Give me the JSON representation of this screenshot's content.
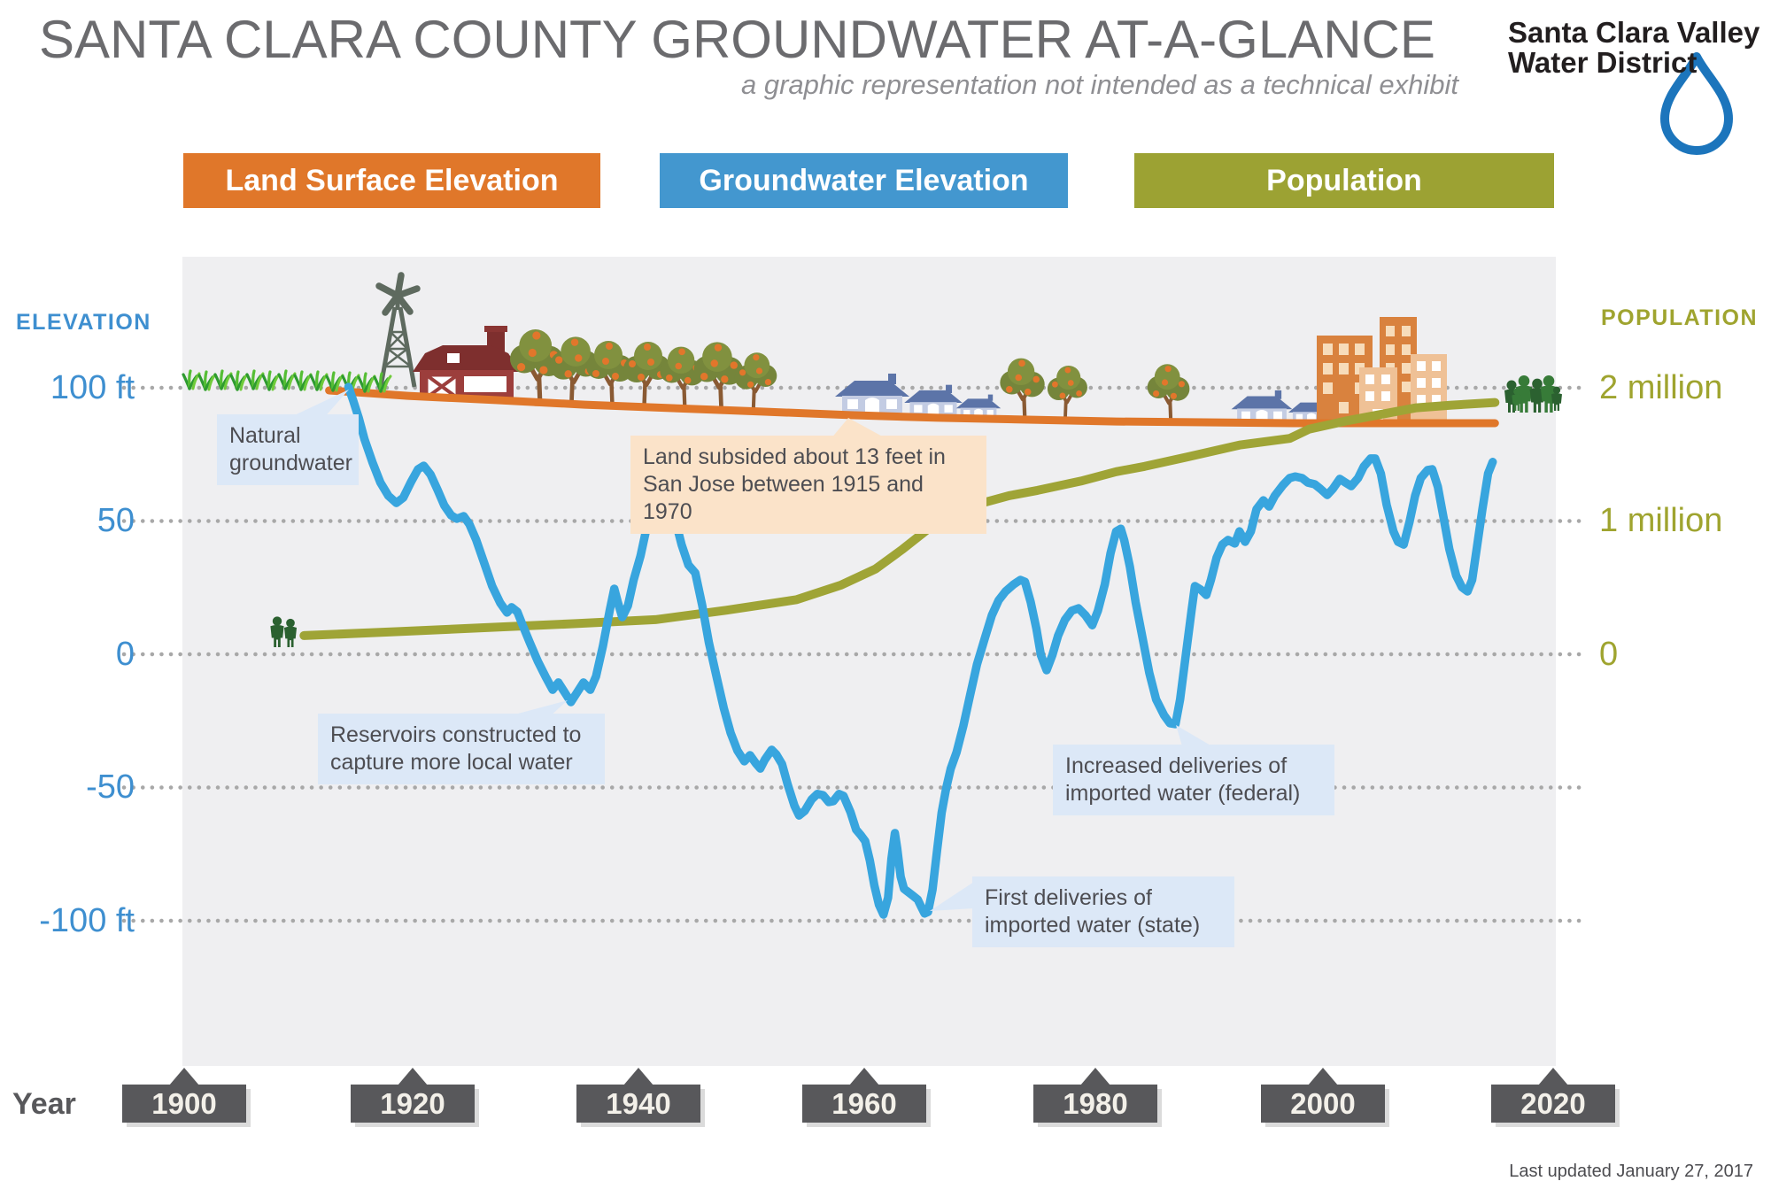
{
  "title": "SANTA CLARA COUNTY GROUNDWATER AT-A-GLANCE",
  "subtitle": "a graphic representation not intended as a technical exhibit",
  "logo": {
    "line1": "Santa Clara Valley",
    "line2": "Water District"
  },
  "legend": [
    {
      "label": "Land Surface Elevation",
      "color": "#E0772A"
    },
    {
      "label": "Groundwater Elevation",
      "color": "#4397CF"
    },
    {
      "label": "Population",
      "color": "#9CA233"
    }
  ],
  "left_axis": {
    "title": "ELEVATION",
    "ticks": [
      "100 ft",
      "50",
      "0",
      "-50",
      "-100 ft"
    ]
  },
  "right_axis": {
    "title": "POPULATION",
    "ticks": [
      "2 million",
      "1 million",
      "0"
    ]
  },
  "x_axis": {
    "title": "Year",
    "years": [
      "1900",
      "1920",
      "1940",
      "1960",
      "1980",
      "2000",
      "2020"
    ]
  },
  "annotations": {
    "natural": {
      "line1": "Natural",
      "line2": "groundwater"
    },
    "subsided": {
      "line1": "Land subsided about 13 feet in",
      "line2": "San Jose between 1915 and 1970"
    },
    "reservoirs": {
      "line1": "Reservoirs constructed to",
      "line2": "capture more local water"
    },
    "federal": {
      "line1": "Increased deliveries of",
      "line2": "imported water (federal)"
    },
    "state": {
      "line1": "First deliveries of",
      "line2": "imported water (state)"
    }
  },
  "footer": {
    "last_updated": "Last updated January 27, 2017"
  },
  "colors": {
    "land_surface": "#E0772A",
    "groundwater": "#38A5DE",
    "population": "#9FA436",
    "plot_background": "#EFEFF1",
    "gridline": "#A8A8A8",
    "note_blue": "#DCE8F7",
    "note_peach": "#FBE3C9",
    "year_box": "#58585B",
    "logo_drop": "#1C75BC"
  },
  "chart_data": {
    "type": "line",
    "title": "Santa Clara County Groundwater At-A-Glance",
    "x_range": [
      1900,
      2020
    ],
    "elevation_axis": {
      "unit": "ft",
      "ticks": [
        100,
        50,
        0,
        -50,
        -100
      ]
    },
    "population_axis": {
      "unit": "million",
      "ticks": [
        2,
        1,
        0
      ]
    },
    "grid": "dotted horizontal",
    "legend_position": "top",
    "series": {
      "land_surface_elevation_ft": {
        "points": [
          [
            1912.7,
            99.0
          ],
          [
            1919.6,
            97.0
          ],
          [
            1927.3,
            95.4
          ],
          [
            1935.1,
            93.7
          ],
          [
            1942.8,
            92.4
          ],
          [
            1950.6,
            91.1
          ],
          [
            1958.4,
            89.8
          ],
          [
            1966.1,
            88.8
          ],
          [
            1973.9,
            88.1
          ],
          [
            1981.7,
            87.4
          ],
          [
            1989.4,
            87.1
          ],
          [
            1997.2,
            86.8
          ],
          [
            2004.9,
            86.8
          ],
          [
            2014.9,
            86.8
          ]
        ]
      },
      "population_millions": {
        "points": [
          [
            1910.5,
            0.14
          ],
          [
            1918.8,
            0.17
          ],
          [
            1926.5,
            0.2
          ],
          [
            1934.3,
            0.23
          ],
          [
            1941.3,
            0.26
          ],
          [
            1947.5,
            0.33
          ],
          [
            1950.6,
            0.37
          ],
          [
            1953.7,
            0.41
          ],
          [
            1957.6,
            0.52
          ],
          [
            1960.6,
            0.64
          ],
          [
            1963.0,
            0.79
          ],
          [
            1966.1,
            1.0
          ],
          [
            1969.3,
            1.12
          ],
          [
            1972.3,
            1.19
          ],
          [
            1974.8,
            1.23
          ],
          [
            1978.6,
            1.3
          ],
          [
            1981.7,
            1.37
          ],
          [
            1984.2,
            1.41
          ],
          [
            1987.9,
            1.48
          ],
          [
            1992.5,
            1.57
          ],
          [
            1996.9,
            1.62
          ],
          [
            1998.6,
            1.69
          ],
          [
            2001.8,
            1.75
          ],
          [
            2004.9,
            1.8
          ],
          [
            2008.0,
            1.85
          ],
          [
            2011.1,
            1.87
          ],
          [
            2014.9,
            1.89
          ]
        ]
      },
      "groundwater_elevation_ft": {
        "points": [
          [
            1914.4,
            100.3
          ],
          [
            1914.8,
            95.4
          ],
          [
            1915.3,
            88.8
          ],
          [
            1915.8,
            80.8
          ],
          [
            1916.5,
            72.2
          ],
          [
            1917.2,
            64.6
          ],
          [
            1917.9,
            59.7
          ],
          [
            1918.6,
            57.0
          ],
          [
            1919.2,
            59.0
          ],
          [
            1919.9,
            65.0
          ],
          [
            1920.5,
            69.6
          ],
          [
            1921.0,
            70.9
          ],
          [
            1921.6,
            67.6
          ],
          [
            1922.2,
            62.0
          ],
          [
            1922.8,
            56.1
          ],
          [
            1923.4,
            52.4
          ],
          [
            1923.9,
            51.1
          ],
          [
            1924.5,
            52.1
          ],
          [
            1925.0,
            49.1
          ],
          [
            1925.6,
            43.2
          ],
          [
            1926.3,
            34.6
          ],
          [
            1927.0,
            26.0
          ],
          [
            1927.7,
            19.7
          ],
          [
            1928.3,
            16.1
          ],
          [
            1928.7,
            18.1
          ],
          [
            1929.2,
            16.4
          ],
          [
            1929.7,
            11.1
          ],
          [
            1930.3,
            4.8
          ],
          [
            1931.0,
            -2.1
          ],
          [
            1931.7,
            -8.0
          ],
          [
            1932.3,
            -12.7
          ],
          [
            1932.8,
            -10.0
          ],
          [
            1933.3,
            -13.3
          ],
          [
            1933.9,
            -17.3
          ],
          [
            1934.5,
            -13.3
          ],
          [
            1935.0,
            -10.0
          ],
          [
            1935.6,
            -12.7
          ],
          [
            1936.1,
            -7.7
          ],
          [
            1936.7,
            3.5
          ],
          [
            1937.3,
            16.8
          ],
          [
            1937.7,
            25.0
          ],
          [
            1938.0,
            20.1
          ],
          [
            1938.4,
            14.4
          ],
          [
            1938.9,
            18.7
          ],
          [
            1939.4,
            28.3
          ],
          [
            1940.0,
            37.2
          ],
          [
            1940.5,
            47.1
          ],
          [
            1941.1,
            54.0
          ],
          [
            1941.6,
            56.0
          ],
          [
            1942.0,
            53.7
          ],
          [
            1942.5,
            56.7
          ],
          [
            1943.0,
            51.4
          ],
          [
            1943.6,
            41.5
          ],
          [
            1944.2,
            33.9
          ],
          [
            1944.8,
            30.9
          ],
          [
            1945.4,
            19.0
          ],
          [
            1946.0,
            4.8
          ],
          [
            1946.7,
            -8.4
          ],
          [
            1947.3,
            -19.6
          ],
          [
            1947.9,
            -28.8
          ],
          [
            1948.5,
            -35.4
          ],
          [
            1949.1,
            -39.4
          ],
          [
            1949.6,
            -37.1
          ],
          [
            1950.1,
            -40.1
          ],
          [
            1950.5,
            -42.1
          ],
          [
            1950.9,
            -38.8
          ],
          [
            1951.5,
            -35.1
          ],
          [
            1951.9,
            -36.8
          ],
          [
            1952.4,
            -40.4
          ],
          [
            1952.9,
            -48.0
          ],
          [
            1953.5,
            -56.0
          ],
          [
            1953.9,
            -59.6
          ],
          [
            1954.4,
            -57.9
          ],
          [
            1955.0,
            -53.6
          ],
          [
            1955.5,
            -51.6
          ],
          [
            1956.0,
            -52.0
          ],
          [
            1956.5,
            -54.6
          ],
          [
            1956.9,
            -54.3
          ],
          [
            1957.4,
            -51.6
          ],
          [
            1957.8,
            -52.3
          ],
          [
            1958.4,
            -58.3
          ],
          [
            1958.9,
            -64.9
          ],
          [
            1959.3,
            -66.9
          ],
          [
            1959.7,
            -69.2
          ],
          [
            1960.1,
            -76.4
          ],
          [
            1960.5,
            -85.7
          ],
          [
            1960.9,
            -92.9
          ],
          [
            1961.3,
            -96.6
          ],
          [
            1961.7,
            -90.3
          ],
          [
            1962.0,
            -75.8
          ],
          [
            1962.3,
            -66.2
          ],
          [
            1962.5,
            -71.8
          ],
          [
            1962.8,
            -82.4
          ],
          [
            1963.1,
            -87.0
          ],
          [
            1963.5,
            -88.3
          ],
          [
            1963.9,
            -89.6
          ],
          [
            1964.3,
            -91.0
          ],
          [
            1964.6,
            -93.6
          ],
          [
            1964.9,
            -96.2
          ],
          [
            1965.2,
            -95.6
          ],
          [
            1965.6,
            -87.3
          ],
          [
            1966.0,
            -72.5
          ],
          [
            1966.4,
            -58.6
          ],
          [
            1966.8,
            -49.3
          ],
          [
            1967.2,
            -42.1
          ],
          [
            1967.7,
            -36.1
          ],
          [
            1968.3,
            -26.2
          ],
          [
            1968.9,
            -14.6
          ],
          [
            1969.5,
            -3.1
          ],
          [
            1970.2,
            6.8
          ],
          [
            1970.8,
            15.1
          ],
          [
            1971.4,
            20.7
          ],
          [
            1972.0,
            24.0
          ],
          [
            1972.7,
            26.6
          ],
          [
            1973.3,
            28.3
          ],
          [
            1973.7,
            27.6
          ],
          [
            1974.2,
            20.1
          ],
          [
            1974.7,
            10.1
          ],
          [
            1975.1,
            0.2
          ],
          [
            1975.6,
            -5.4
          ],
          [
            1976.1,
            0.2
          ],
          [
            1976.6,
            7.4
          ],
          [
            1977.2,
            13.4
          ],
          [
            1977.8,
            16.8
          ],
          [
            1978.4,
            17.7
          ],
          [
            1979.0,
            15.1
          ],
          [
            1979.6,
            11.4
          ],
          [
            1980.1,
            16.8
          ],
          [
            1980.7,
            26.7
          ],
          [
            1981.2,
            38.2
          ],
          [
            1981.7,
            46.4
          ],
          [
            1982.1,
            47.4
          ],
          [
            1982.4,
            43.1
          ],
          [
            1982.9,
            33.2
          ],
          [
            1983.4,
            20.1
          ],
          [
            1984.0,
            6.8
          ],
          [
            1984.6,
            -6.4
          ],
          [
            1985.2,
            -16.3
          ],
          [
            1985.9,
            -22.2
          ],
          [
            1986.4,
            -25.2
          ],
          [
            1986.9,
            -25.5
          ],
          [
            1987.3,
            -16.3
          ],
          [
            1987.8,
            0.2
          ],
          [
            1988.3,
            16.8
          ],
          [
            1988.6,
            26.0
          ],
          [
            1989.1,
            24.7
          ],
          [
            1989.6,
            22.7
          ],
          [
            1990.0,
            28.3
          ],
          [
            1990.5,
            36.6
          ],
          [
            1991.0,
            41.5
          ],
          [
            1991.5,
            43.2
          ],
          [
            1992.1,
            41.9
          ],
          [
            1992.5,
            46.4
          ],
          [
            1993.0,
            42.5
          ],
          [
            1993.5,
            46.4
          ],
          [
            1994.0,
            54.7
          ],
          [
            1994.6,
            58.0
          ],
          [
            1995.1,
            55.7
          ],
          [
            1995.6,
            59.7
          ],
          [
            1996.3,
            63.6
          ],
          [
            1996.9,
            66.3
          ],
          [
            1997.4,
            66.9
          ],
          [
            1998.0,
            66.3
          ],
          [
            1998.5,
            64.6
          ],
          [
            1999.1,
            64.0
          ],
          [
            1999.6,
            62.3
          ],
          [
            2000.2,
            60.0
          ],
          [
            2000.7,
            62.3
          ],
          [
            2001.3,
            66.0
          ],
          [
            2001.8,
            64.6
          ],
          [
            2002.3,
            63.3
          ],
          [
            2002.9,
            66.3
          ],
          [
            2003.4,
            70.6
          ],
          [
            2004.0,
            73.6
          ],
          [
            2004.4,
            73.6
          ],
          [
            2004.9,
            68.0
          ],
          [
            2005.4,
            56.4
          ],
          [
            2006.0,
            46.4
          ],
          [
            2006.4,
            42.5
          ],
          [
            2006.9,
            41.5
          ],
          [
            2007.4,
            49.7
          ],
          [
            2007.9,
            59.7
          ],
          [
            2008.4,
            66.3
          ],
          [
            2009.0,
            69.3
          ],
          [
            2009.4,
            69.6
          ],
          [
            2009.9,
            63.0
          ],
          [
            2010.4,
            51.4
          ],
          [
            2010.9,
            39.8
          ],
          [
            2011.5,
            29.9
          ],
          [
            2012.0,
            25.6
          ],
          [
            2012.5,
            24.0
          ],
          [
            2012.9,
            28.3
          ],
          [
            2013.3,
            39.8
          ],
          [
            2013.8,
            54.7
          ],
          [
            2014.3,
            68.0
          ],
          [
            2014.7,
            72.3
          ]
        ]
      }
    }
  }
}
